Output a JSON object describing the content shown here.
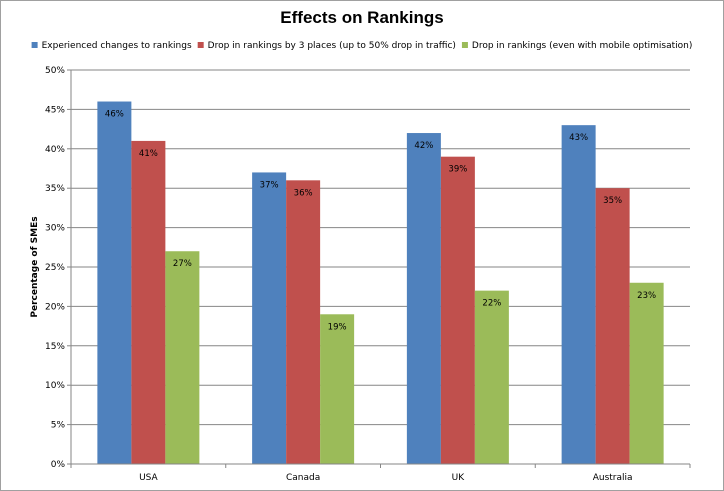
{
  "chart_data": {
    "type": "bar",
    "title": "Effects on Rankings",
    "xlabel": "",
    "ylabel": "Percentage of SMEs",
    "ylim": [
      0,
      50
    ],
    "ytick_step": 5,
    "ytick_labels": [
      "0%",
      "5%",
      "10%",
      "15%",
      "20%",
      "25%",
      "30%",
      "35%",
      "40%",
      "45%",
      "50%"
    ],
    "grid": true,
    "legend_position": "top",
    "categories": [
      "USA",
      "Canada",
      "UK",
      "Australia"
    ],
    "series": [
      {
        "name": "Experienced changes to rankings",
        "color": "#4f81bd",
        "values": [
          46,
          37,
          42,
          43
        ],
        "labels": [
          "46%",
          "37%",
          "42%",
          "43%"
        ]
      },
      {
        "name": "Drop in rankings by 3 places (up to 50% drop in traffic)",
        "color": "#c0504d",
        "values": [
          41,
          36,
          39,
          35
        ],
        "labels": [
          "41%",
          "36%",
          "39%",
          "35%"
        ]
      },
      {
        "name": "Drop in rankings (even with mobile optimisation)",
        "color": "#9bbb59",
        "values": [
          27,
          19,
          22,
          23
        ],
        "labels": [
          "27%",
          "19%",
          "22%",
          "23%"
        ]
      }
    ],
    "colors": {
      "gridline": "#868686",
      "axis": "#868686",
      "frame": "#a0a0a0"
    }
  }
}
